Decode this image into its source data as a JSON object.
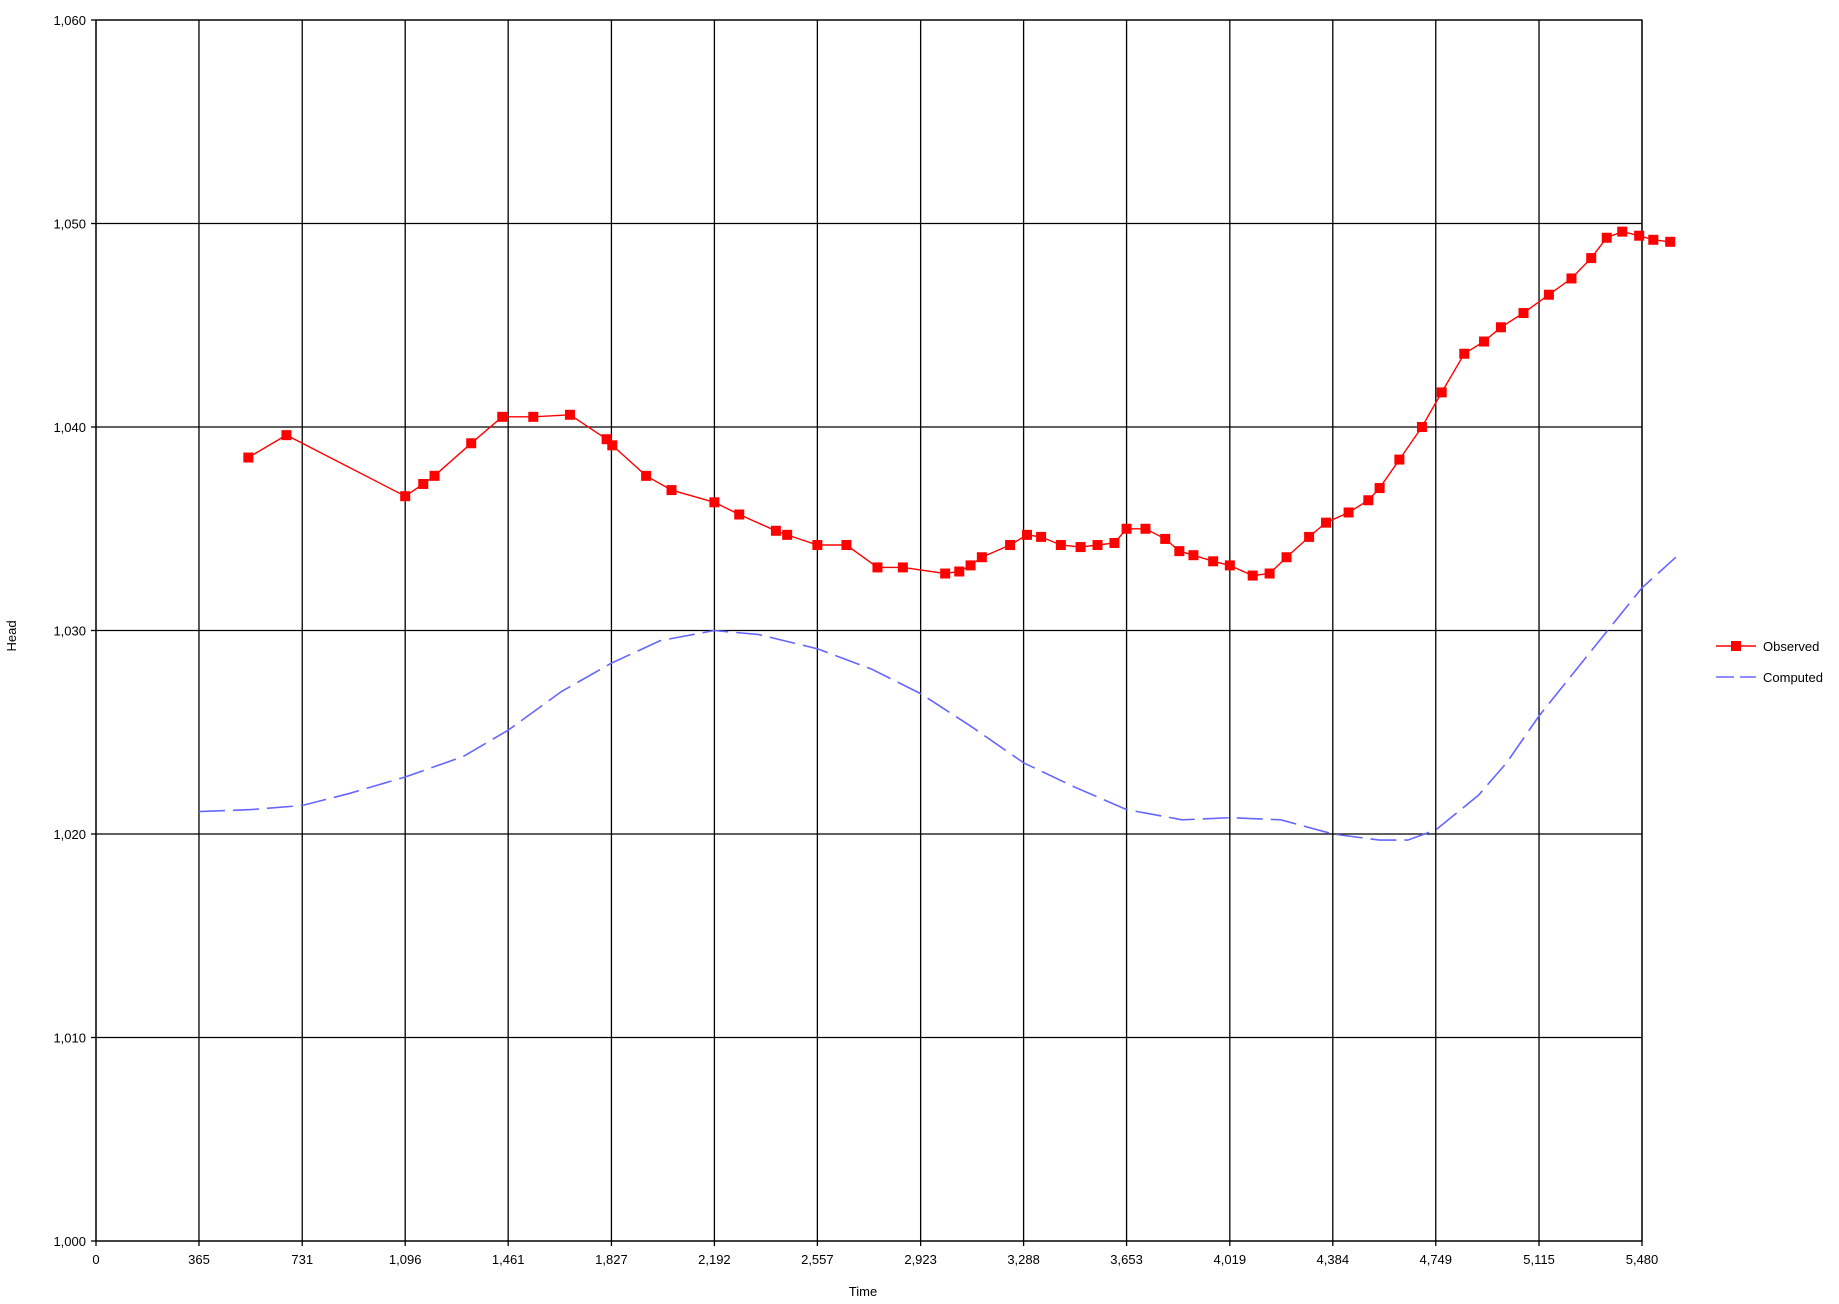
{
  "chart_data": {
    "type": "line",
    "title": "",
    "xlabel": "Time",
    "ylabel": "Head",
    "xlim": [
      0,
      5480
    ],
    "ylim": [
      1000,
      1060
    ],
    "x_ticks": [
      0,
      365,
      731,
      1096,
      1461,
      1827,
      2192,
      2557,
      2923,
      3288,
      3653,
      4019,
      4384,
      4749,
      5115,
      5480
    ],
    "x_tick_labels": [
      "0",
      "365",
      "731",
      "1,096",
      "1,461",
      "1,827",
      "2,192",
      "2,557",
      "2,923",
      "3,288",
      "3,653",
      "4,019",
      "4,384",
      "4,749",
      "5,115",
      "5,480"
    ],
    "y_ticks": [
      1000,
      1010,
      1020,
      1030,
      1040,
      1050,
      1060
    ],
    "y_tick_labels": [
      "1,000",
      "1,010",
      "1,020",
      "1,030",
      "1,040",
      "1,050",
      "1,060"
    ],
    "grid": true,
    "legend_position": "right",
    "series": [
      {
        "name": "Observed",
        "color": "#ff0000",
        "style": "solid",
        "marker": "square",
        "points": [
          [
            540,
            1038.5
          ],
          [
            675,
            1039.6
          ],
          [
            1096,
            1036.6
          ],
          [
            1160,
            1037.2
          ],
          [
            1200,
            1037.6
          ],
          [
            1330,
            1039.2
          ],
          [
            1440,
            1040.5
          ],
          [
            1550,
            1040.5
          ],
          [
            1680,
            1040.6
          ],
          [
            1810,
            1039.4
          ],
          [
            1830,
            1039.1
          ],
          [
            1950,
            1037.6
          ],
          [
            2040,
            1036.9
          ],
          [
            2192,
            1036.3
          ],
          [
            2280,
            1035.7
          ],
          [
            2410,
            1034.9
          ],
          [
            2450,
            1034.7
          ],
          [
            2557,
            1034.2
          ],
          [
            2660,
            1034.2
          ],
          [
            2770,
            1033.1
          ],
          [
            2860,
            1033.1
          ],
          [
            3010,
            1032.8
          ],
          [
            3060,
            1032.9
          ],
          [
            3100,
            1033.2
          ],
          [
            3140,
            1033.6
          ],
          [
            3240,
            1034.2
          ],
          [
            3300,
            1034.7
          ],
          [
            3350,
            1034.6
          ],
          [
            3420,
            1034.2
          ],
          [
            3490,
            1034.1
          ],
          [
            3550,
            1034.2
          ],
          [
            3610,
            1034.3
          ],
          [
            3653,
            1035.0
          ],
          [
            3720,
            1035.0
          ],
          [
            3790,
            1034.5
          ],
          [
            3840,
            1033.9
          ],
          [
            3890,
            1033.7
          ],
          [
            3960,
            1033.4
          ],
          [
            4019,
            1033.2
          ],
          [
            4100,
            1032.7
          ],
          [
            4160,
            1032.8
          ],
          [
            4220,
            1033.6
          ],
          [
            4300,
            1034.6
          ],
          [
            4360,
            1035.3
          ],
          [
            4440,
            1035.8
          ],
          [
            4510,
            1036.4
          ],
          [
            4550,
            1037.0
          ],
          [
            4620,
            1038.4
          ],
          [
            4700,
            1040.0
          ],
          [
            4770,
            1041.7
          ],
          [
            4850,
            1043.6
          ],
          [
            4920,
            1044.2
          ],
          [
            4980,
            1044.9
          ],
          [
            5060,
            1045.6
          ],
          [
            5150,
            1046.5
          ],
          [
            5230,
            1047.3
          ],
          [
            5300,
            1048.3
          ],
          [
            5355,
            1049.3
          ],
          [
            5410,
            1049.6
          ],
          [
            5470,
            1049.4
          ],
          [
            5520,
            1049.2
          ],
          [
            5580,
            1049.1
          ]
        ]
      },
      {
        "name": "Computed",
        "color": "#6666ff",
        "style": "dashed",
        "marker": "none",
        "points": [
          [
            365,
            1021.1
          ],
          [
            550,
            1021.2
          ],
          [
            731,
            1021.4
          ],
          [
            900,
            1022.0
          ],
          [
            1096,
            1022.8
          ],
          [
            1300,
            1023.8
          ],
          [
            1461,
            1025.1
          ],
          [
            1650,
            1027.0
          ],
          [
            1827,
            1028.4
          ],
          [
            2000,
            1029.5
          ],
          [
            2192,
            1030.0
          ],
          [
            2350,
            1029.8
          ],
          [
            2557,
            1029.1
          ],
          [
            2750,
            1028.1
          ],
          [
            2923,
            1026.9
          ],
          [
            3100,
            1025.3
          ],
          [
            3288,
            1023.5
          ],
          [
            3470,
            1022.3
          ],
          [
            3653,
            1021.2
          ],
          [
            3850,
            1020.7
          ],
          [
            4019,
            1020.8
          ],
          [
            4200,
            1020.7
          ],
          [
            4384,
            1020.0
          ],
          [
            4550,
            1019.7
          ],
          [
            4650,
            1019.7
          ],
          [
            4749,
            1020.2
          ],
          [
            4900,
            1021.9
          ],
          [
            5000,
            1023.5
          ],
          [
            5115,
            1025.8
          ],
          [
            5300,
            1029.0
          ],
          [
            5480,
            1032.1
          ],
          [
            5600,
            1033.6
          ]
        ]
      }
    ]
  }
}
